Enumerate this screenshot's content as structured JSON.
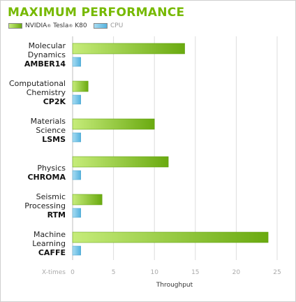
{
  "title": "MAXIMUM PERFORMANCE",
  "legend": {
    "gpu_label_a": "NVIDIA",
    "gpu_label_b": "Tesla",
    "gpu_label_c": "K80",
    "trademark": "®",
    "cpu_label": "CPU"
  },
  "colors": {
    "title": "#76b900",
    "gpu_light": "#c6ec7a",
    "gpu_dark": "#6aaa10",
    "cpu_light": "#a8dcf2",
    "cpu_dark": "#55b3df",
    "grid": "#dddddd"
  },
  "chart_data": {
    "type": "bar",
    "orientation": "horizontal",
    "xlabel": "Throughput",
    "xtick_prefix": "X-times",
    "xlim": [
      0,
      26
    ],
    "xticks": [
      0,
      5,
      10,
      15,
      20,
      25
    ],
    "grid": true,
    "legend_position": "top-left",
    "categories": [
      {
        "lines": [
          "Molecular",
          "Dynamics"
        ],
        "code": "AMBER14"
      },
      {
        "lines": [
          "Computational",
          "Chemistry"
        ],
        "code": "CP2K"
      },
      {
        "lines": [
          "Materials",
          "Science"
        ],
        "code": "LSMS"
      },
      {
        "lines": [
          "Physics"
        ],
        "code": "CHROMA"
      },
      {
        "lines": [
          "Seismic",
          "Processing"
        ],
        "code": "RTM"
      },
      {
        "lines": [
          "Machine",
          "Learning"
        ],
        "code": "CAFFE"
      }
    ],
    "series": [
      {
        "name": "NVIDIA Tesla K80",
        "values": [
          13.7,
          1.9,
          10.0,
          11.7,
          3.6,
          23.9
        ]
      },
      {
        "name": "CPU",
        "values": [
          1,
          1,
          1,
          1,
          1,
          1
        ]
      }
    ]
  }
}
